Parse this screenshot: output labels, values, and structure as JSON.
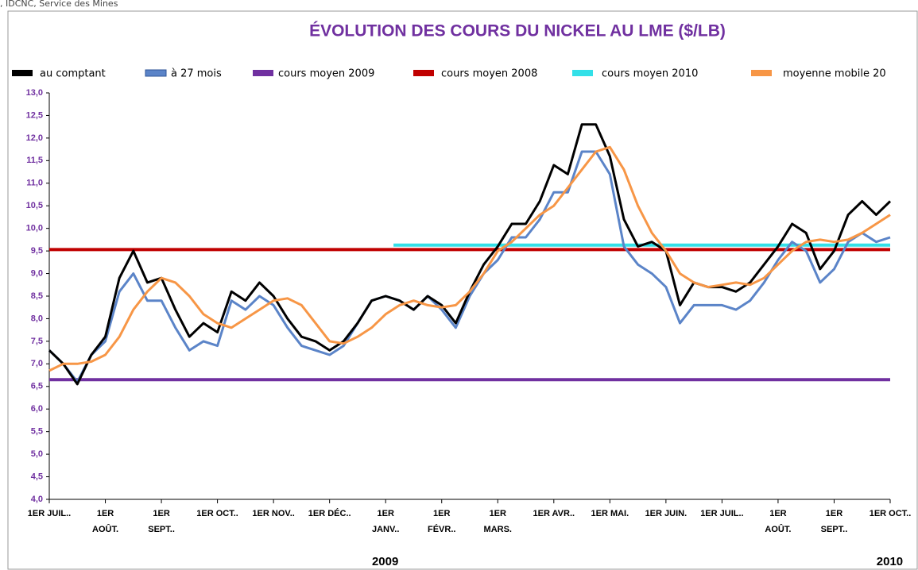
{
  "chart_data": {
    "type": "line",
    "source": ", IDCNC, Service des Mines",
    "title": "ÉVOLUTION DES COURS DU NICKEL AU LME ($/LB)",
    "x": [
      0,
      0.25,
      0.5,
      0.75,
      1,
      1.25,
      1.5,
      1.75,
      2,
      2.25,
      2.5,
      2.75,
      3,
      3.25,
      3.5,
      3.75,
      4,
      4.25,
      4.5,
      4.75,
      5,
      5.25,
      5.5,
      5.75,
      6,
      6.25,
      6.5,
      6.75,
      7,
      7.25,
      7.5,
      7.75,
      8,
      8.25,
      8.5,
      8.75,
      9,
      9.25,
      9.5,
      9.75,
      10,
      10.25,
      10.5,
      10.75,
      11,
      11.25,
      11.5,
      11.75,
      12,
      12.25,
      12.5,
      12.75,
      13,
      13.25,
      13.5,
      13.75,
      14,
      14.25,
      14.5,
      14.75,
      15
    ],
    "series": [
      {
        "name": "au comptant",
        "color": "#000000",
        "width": 3,
        "values": [
          7.3,
          7.0,
          6.55,
          7.2,
          7.6,
          8.9,
          9.5,
          8.8,
          8.9,
          8.2,
          7.6,
          7.9,
          7.7,
          8.6,
          8.4,
          8.8,
          8.5,
          8.0,
          7.6,
          7.5,
          7.3,
          7.5,
          7.9,
          8.4,
          8.5,
          8.4,
          8.2,
          8.5,
          8.3,
          7.9,
          8.6,
          9.2,
          9.6,
          10.1,
          10.1,
          10.6,
          11.4,
          11.2,
          12.3,
          12.3,
          11.6,
          10.2,
          9.6,
          9.7,
          9.5,
          8.3,
          8.8,
          8.7,
          8.7,
          8.6,
          8.8,
          9.2,
          9.6,
          10.1,
          9.9,
          9.1,
          9.5,
          10.3,
          10.6,
          10.3,
          10.6
        ]
      },
      {
        "name": "à 27 mois",
        "color": "#5b84c8",
        "width": 3,
        "values": [
          7.3,
          7.0,
          6.6,
          7.2,
          7.5,
          8.6,
          9.0,
          8.4,
          8.4,
          7.8,
          7.3,
          7.5,
          7.4,
          8.4,
          8.2,
          8.5,
          8.3,
          7.8,
          7.4,
          7.3,
          7.2,
          7.4,
          7.9,
          8.4,
          8.5,
          8.4,
          8.2,
          8.5,
          8.2,
          7.8,
          8.5,
          9.0,
          9.3,
          9.8,
          9.8,
          10.2,
          10.8,
          10.8,
          11.7,
          11.7,
          11.2,
          9.6,
          9.2,
          9.0,
          8.7,
          7.9,
          8.3,
          8.3,
          8.3,
          8.2,
          8.4,
          8.8,
          9.3,
          9.7,
          9.5,
          8.8,
          9.1,
          9.7,
          9.9,
          9.7,
          9.8
        ]
      },
      {
        "name": "cours moyen 2009",
        "color": "#7030a0",
        "width": 4,
        "x": [
          0,
          15
        ],
        "values": [
          6.65,
          6.65
        ]
      },
      {
        "name": "cours moyen 2008",
        "color": "#c00000",
        "width": 4,
        "x": [
          0,
          15
        ],
        "values": [
          9.53,
          9.53
        ]
      },
      {
        "name": "cours moyen 2010",
        "color": "#33e0e8",
        "width": 4,
        "x": [
          6.14,
          15
        ],
        "values": [
          9.63,
          9.63
        ]
      },
      {
        "name": "moyenne mobile 20",
        "color": "#f79646",
        "width": 3,
        "values": [
          6.85,
          7.0,
          7.0,
          7.05,
          7.2,
          7.6,
          8.2,
          8.6,
          8.9,
          8.8,
          8.5,
          8.1,
          7.9,
          7.8,
          8.0,
          8.2,
          8.4,
          8.45,
          8.3,
          7.9,
          7.5,
          7.45,
          7.6,
          7.8,
          8.1,
          8.3,
          8.4,
          8.3,
          8.25,
          8.3,
          8.6,
          9.0,
          9.5,
          9.7,
          10.0,
          10.3,
          10.5,
          10.9,
          11.3,
          11.7,
          11.8,
          11.3,
          10.5,
          9.9,
          9.5,
          9.0,
          8.8,
          8.7,
          8.75,
          8.8,
          8.75,
          8.9,
          9.2,
          9.5,
          9.7,
          9.75,
          9.7,
          9.75,
          9.9,
          10.1,
          10.3
        ]
      }
    ],
    "xlim": [
      0,
      15
    ],
    "xticks": [
      {
        "value": 0,
        "label": "1ER JUIL.."
      },
      {
        "value": 1,
        "label": "1ER\nAOÛT."
      },
      {
        "value": 2,
        "label": "1ER\nSEPT.."
      },
      {
        "value": 3,
        "label": "1ER OCT.."
      },
      {
        "value": 4,
        "label": "1ER NOV.."
      },
      {
        "value": 5,
        "label": "1ER DÉC.."
      },
      {
        "value": 6,
        "label": "1ER\nJANV.."
      },
      {
        "value": 7,
        "label": "1ER\nFÉVR.."
      },
      {
        "value": 8,
        "label": "1ER\nMARS."
      },
      {
        "value": 9,
        "label": "1ER AVR.."
      },
      {
        "value": 10,
        "label": "1ER MAI."
      },
      {
        "value": 11,
        "label": "1ER JUIN."
      },
      {
        "value": 12,
        "label": "1ER JUIL.."
      },
      {
        "value": 13,
        "label": "1ER\nAOÛT."
      },
      {
        "value": 14,
        "label": "1ER\nSEPT.."
      },
      {
        "value": 15,
        "label": "1ER OCT.."
      }
    ],
    "year_labels": [
      {
        "value": 5,
        "label": "2009"
      },
      {
        "value": 14,
        "label": "2010"
      }
    ],
    "ylim": [
      4,
      13
    ],
    "yticks": [
      {
        "value": 4,
        "label": "4,0"
      },
      {
        "value": 4.5,
        "label": "4,5"
      },
      {
        "value": 5,
        "label": "5,0"
      },
      {
        "value": 5.5,
        "label": "5,5"
      },
      {
        "value": 6,
        "label": "6,0"
      },
      {
        "value": 6.5,
        "label": "6,5"
      },
      {
        "value": 7,
        "label": "7,0"
      },
      {
        "value": 7.5,
        "label": "7,5"
      },
      {
        "value": 8,
        "label": "8,0"
      },
      {
        "value": 8.5,
        "label": "8,5"
      },
      {
        "value": 9,
        "label": "9,0"
      },
      {
        "value": 9.5,
        "label": "9,5"
      },
      {
        "value": 10,
        "label": "10,0"
      },
      {
        "value": 10.5,
        "label": "10,5"
      },
      {
        "value": 11,
        "label": "11,0"
      },
      {
        "value": 11.5,
        "label": "11,5"
      },
      {
        "value": 12,
        "label": "12,0"
      },
      {
        "value": 12.5,
        "label": "12,5"
      },
      {
        "value": 13,
        "label": "13,0"
      }
    ],
    "grid": false,
    "legend": "top"
  }
}
